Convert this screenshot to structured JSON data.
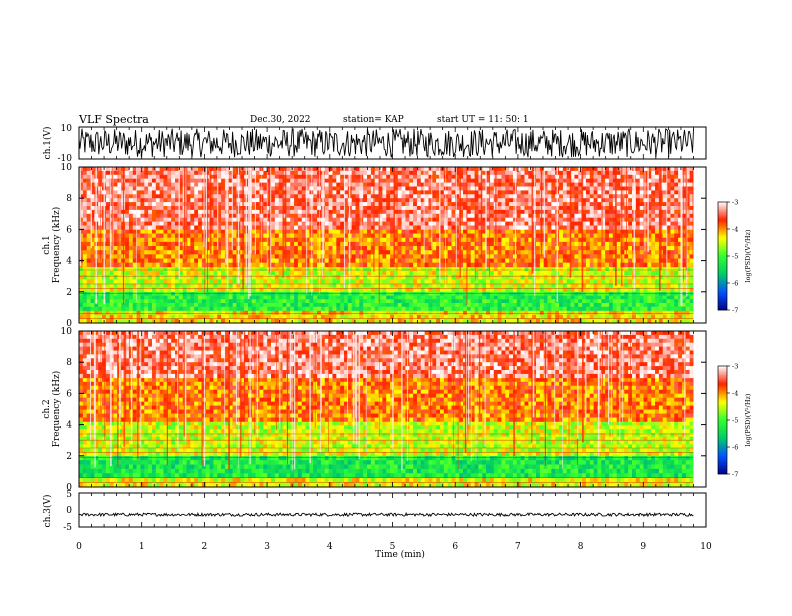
{
  "header": {
    "title": "VLF Spectra",
    "date": "Dec.30, 2022",
    "station": "station= KAP",
    "start": "start  UT =    11: 50: 1"
  },
  "chart_data": {
    "type": "heatmap",
    "xlabel": "Time (min)",
    "x_ticks": [
      "0",
      "1",
      "2",
      "3",
      "4",
      "5",
      "6",
      "7",
      "8",
      "9",
      "10"
    ],
    "xlim": [
      0,
      10
    ],
    "data_end_min": 9.8,
    "panels": [
      {
        "kind": "waveform",
        "ylabel": "ch.1(V)",
        "ylim": [
          -10,
          10
        ],
        "y_ticks": [
          "10",
          "-10"
        ],
        "amplitude_range": [
          -9,
          9
        ]
      },
      {
        "kind": "spectrogram",
        "ylabel_top": "ch.1",
        "ylabel": "Frequency (kHz)",
        "ylim": [
          0,
          10
        ],
        "y_ticks": [
          "0",
          "2",
          "4",
          "6",
          "8",
          "10"
        ],
        "colorbar": {
          "label": "log(PSD)(V²/Hz)",
          "range": [
            -7,
            -3
          ],
          "ticks": [
            "-3",
            "-4",
            "-5",
            "-6",
            "-7"
          ],
          "stops": [
            "#00008b",
            "#0055ff",
            "#00cc66",
            "#33ff33",
            "#ffff00",
            "#ff2200",
            "#ffffff"
          ]
        },
        "bands": [
          {
            "from_khz": 0.0,
            "to_khz": 0.8,
            "level": -4.3
          },
          {
            "from_khz": 0.8,
            "to_khz": 2.0,
            "level": -5.2
          },
          {
            "from_khz": 2.0,
            "to_khz": 3.6,
            "level": -4.5
          },
          {
            "from_khz": 3.6,
            "to_khz": 6.0,
            "level": -3.9
          },
          {
            "from_khz": 6.0,
            "to_khz": 10.0,
            "level": -3.4
          }
        ]
      },
      {
        "kind": "spectrogram",
        "ylabel_top": "ch.2",
        "ylabel": "Frequency (kHz)",
        "ylim": [
          0,
          10
        ],
        "y_ticks": [
          "0",
          "2",
          "4",
          "6",
          "8",
          "10"
        ],
        "colorbar": {
          "label": "log(PSD)(V²/Hz)",
          "range": [
            -7,
            -3
          ],
          "ticks": [
            "-3",
            "-4",
            "-5",
            "-6",
            "-7"
          ],
          "stops": [
            "#00008b",
            "#0055ff",
            "#00cc66",
            "#33ff33",
            "#ffff00",
            "#ff2200",
            "#ffffff"
          ]
        },
        "bands": [
          {
            "from_khz": 0.0,
            "to_khz": 0.6,
            "level": -4.4
          },
          {
            "from_khz": 0.6,
            "to_khz": 2.0,
            "level": -5.3
          },
          {
            "from_khz": 2.0,
            "to_khz": 4.2,
            "level": -4.5
          },
          {
            "from_khz": 4.2,
            "to_khz": 7.0,
            "level": -3.9
          },
          {
            "from_khz": 7.0,
            "to_khz": 10.0,
            "level": -3.4
          }
        ]
      },
      {
        "kind": "waveform",
        "ylabel": "ch.3(V)",
        "ylim": [
          -5,
          5
        ],
        "y_ticks": [
          "5",
          "0",
          "-5"
        ],
        "amplitude_range": [
          -1.8,
          -0.9
        ]
      }
    ]
  }
}
